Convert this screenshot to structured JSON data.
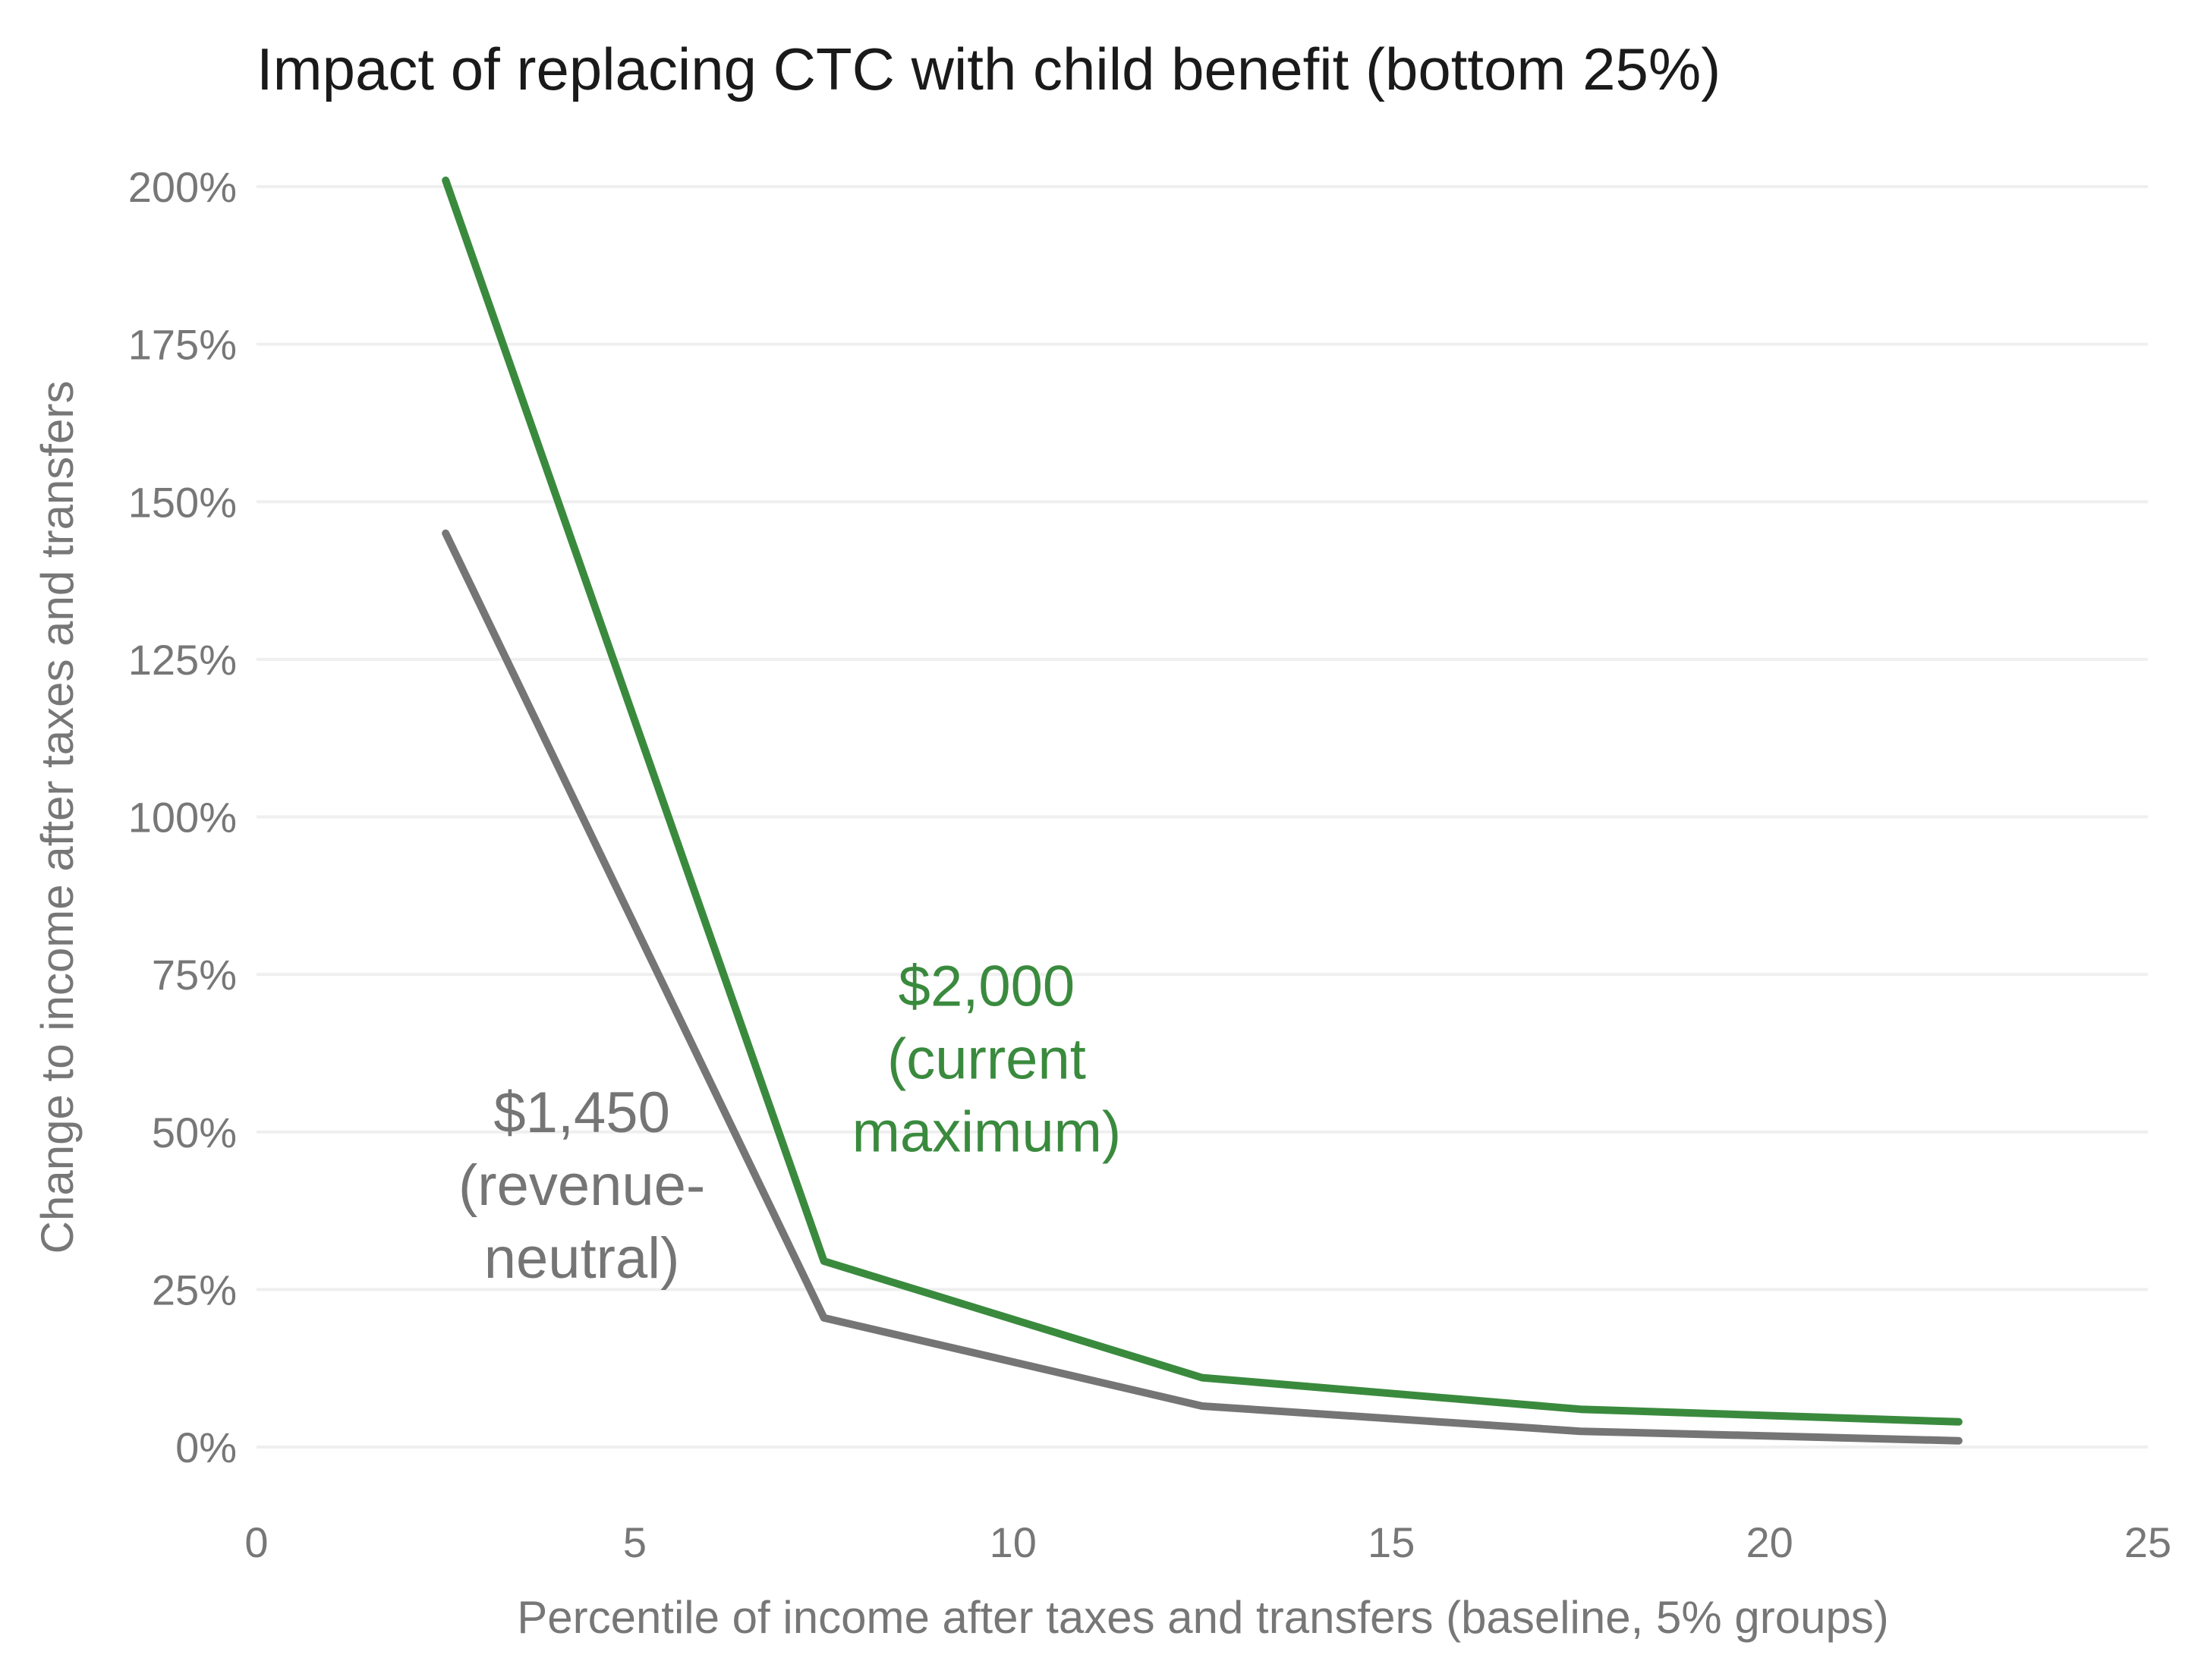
{
  "chart_data": {
    "type": "line",
    "title": "Impact of replacing CTC with child benefit (bottom 25%)",
    "xlabel": "Percentile of income after taxes and transfers (baseline, 5% groups)",
    "ylabel": "Change to income after taxes and transfers",
    "xlim": [
      0,
      25
    ],
    "ylim": [
      -8,
      200
    ],
    "x_ticks": [
      0,
      5,
      10,
      15,
      20,
      25
    ],
    "x_tick_labels": [
      "0",
      "5",
      "10",
      "15",
      "20",
      "25"
    ],
    "y_ticks": [
      0,
      25,
      50,
      75,
      100,
      125,
      150,
      175,
      200
    ],
    "y_tick_labels": [
      "0%",
      "25%",
      "50%",
      "75%",
      "100%",
      "125%",
      "150%",
      "175%",
      "200%"
    ],
    "grid": "horizontal",
    "legend": "none",
    "series": [
      {
        "color": "#3a8a3e",
        "x": [
          2.5,
          7.5,
          12.5,
          17.5,
          22.5
        ],
        "y": [
          201,
          29.5,
          11,
          6,
          4
        ],
        "annotation": {
          "lines": [
            "$2,000",
            "(current",
            "maximum)"
          ],
          "x": 9.65,
          "y": 70
        }
      },
      {
        "color": "#757575",
        "x": [
          2.5,
          7.5,
          12.5,
          17.5,
          22.5
        ],
        "y": [
          145,
          20.5,
          6.5,
          2.5,
          1
        ],
        "annotation": {
          "lines": [
            "$1,450",
            "(revenue-",
            "neutral)"
          ],
          "x": 4.3,
          "y": 50
        }
      }
    ]
  }
}
